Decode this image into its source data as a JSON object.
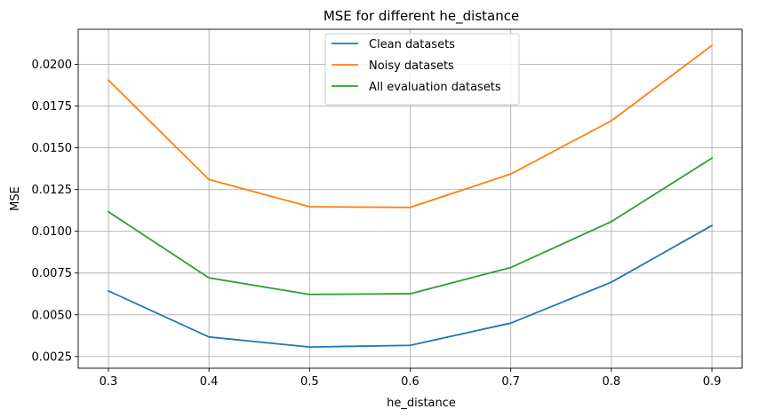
{
  "chart_data": {
    "type": "line",
    "title": "MSE for different he_distance",
    "xlabel": "he_distance",
    "ylabel": "MSE",
    "x": [
      0.3,
      0.4,
      0.5,
      0.6,
      0.7,
      0.8,
      0.9
    ],
    "x_tick_labels": [
      "0.3",
      "0.4",
      "0.5",
      "0.6",
      "0.7",
      "0.8",
      "0.9"
    ],
    "y_ticks": [
      0.0025,
      0.005,
      0.0075,
      0.01,
      0.0125,
      0.015,
      0.0175,
      0.02
    ],
    "y_tick_labels": [
      "0.0025",
      "0.0050",
      "0.0075",
      "0.0100",
      "0.0125",
      "0.0150",
      "0.0175",
      "0.0200"
    ],
    "xlim": [
      0.27,
      0.93
    ],
    "ylim": [
      0.0018,
      0.0221
    ],
    "grid": true,
    "legend_position": "top-center",
    "series": [
      {
        "name": "Clean datasets",
        "color": "#1f77b4",
        "values": [
          0.00643,
          0.00367,
          0.00307,
          0.00317,
          0.0045,
          0.00695,
          0.01035
        ]
      },
      {
        "name": "Noisy datasets",
        "color": "#ff7f0e",
        "values": [
          0.01905,
          0.0131,
          0.01147,
          0.01143,
          0.01343,
          0.01662,
          0.02113
        ]
      },
      {
        "name": "All evaluation datasets",
        "color": "#2ca02c",
        "values": [
          0.01117,
          0.00721,
          0.00622,
          0.00626,
          0.00783,
          0.01058,
          0.01438
        ]
      }
    ]
  }
}
